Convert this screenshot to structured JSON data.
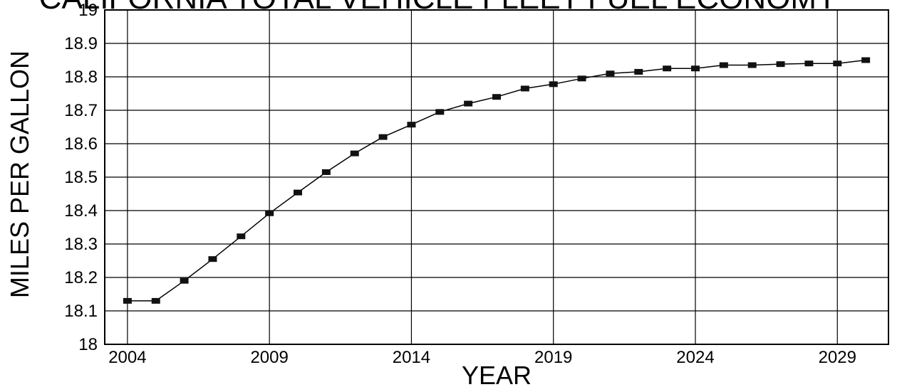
{
  "chart_data": {
    "type": "line",
    "title": "CALIFORNIA TOTAL VEHICLE FLEET FUEL ECONOMY",
    "xlabel": "YEAR",
    "ylabel": "MILES PER GALLON",
    "xlim": [
      2003.2,
      2030.8
    ],
    "ylim": [
      18,
      19
    ],
    "x_ticks": [
      2004,
      2009,
      2014,
      2019,
      2024,
      2029
    ],
    "y_ticks": [
      18,
      18.1,
      18.2,
      18.3,
      18.4,
      18.5,
      18.6,
      18.7,
      18.8,
      18.9,
      19
    ],
    "grid": true,
    "marker": "square",
    "series": [
      {
        "x": [
          2004,
          2005,
          2006,
          2007,
          2008,
          2009,
          2010,
          2011,
          2012,
          2013,
          2014,
          2015,
          2016,
          2017,
          2018,
          2019,
          2020,
          2021,
          2022,
          2023,
          2024,
          2025,
          2026,
          2027,
          2028,
          2029,
          2030
        ],
        "values": [
          18.13,
          18.13,
          18.19,
          18.255,
          18.323,
          18.392,
          18.454,
          18.515,
          18.571,
          18.62,
          18.657,
          18.695,
          18.72,
          18.74,
          18.765,
          18.778,
          18.795,
          18.81,
          18.815,
          18.825,
          18.825,
          18.835,
          18.835,
          18.838,
          18.84,
          18.84,
          18.85
        ]
      }
    ]
  }
}
